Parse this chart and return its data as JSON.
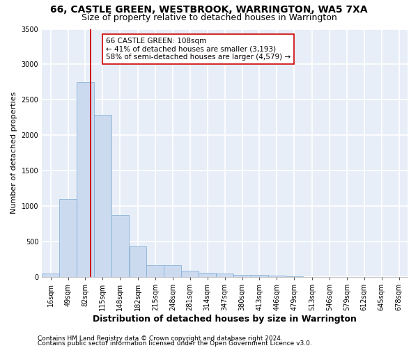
{
  "title1": "66, CASTLE GREEN, WESTBROOK, WARRINGTON, WA5 7XA",
  "title2": "Size of property relative to detached houses in Warrington",
  "xlabel": "Distribution of detached houses by size in Warrington",
  "ylabel": "Number of detached properties",
  "footnote1": "Contains HM Land Registry data © Crown copyright and database right 2024.",
  "footnote2": "Contains public sector information licensed under the Open Government Licence v3.0.",
  "annotation_line1": "66 CASTLE GREEN: 108sqm",
  "annotation_line2": "← 41% of detached houses are smaller (3,193)",
  "annotation_line3": "58% of semi-detached houses are larger (4,579) →",
  "bar_color": "#ccdaf0",
  "bar_edge_color": "#7aaad0",
  "redline_color": "#cc0000",
  "redline_x": 108,
  "bin_starts": [
    16,
    49,
    82,
    115,
    148,
    182,
    215,
    248,
    281,
    314,
    347,
    380,
    413,
    446,
    479,
    513,
    546,
    579,
    612,
    645,
    678
  ],
  "bin_width": 33,
  "bar_heights": [
    50,
    1100,
    2750,
    2290,
    870,
    430,
    170,
    165,
    90,
    60,
    50,
    30,
    25,
    20,
    10,
    5,
    3,
    2,
    1,
    1,
    1
  ],
  "ylim": [
    0,
    3500
  ],
  "yticks": [
    0,
    500,
    1000,
    1500,
    2000,
    2500,
    3000,
    3500
  ],
  "xlim_left": 16,
  "xlim_right": 711,
  "background_color": "#e8eef8",
  "grid_color": "#ffffff",
  "title_fontsize": 10,
  "subtitle_fontsize": 9,
  "annotation_fontsize": 7.5,
  "ylabel_fontsize": 8,
  "xlabel_fontsize": 9,
  "tick_fontsize": 7,
  "footnote_fontsize": 6.5
}
